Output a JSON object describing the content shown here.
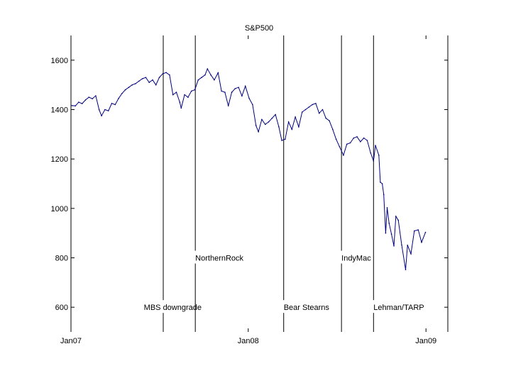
{
  "chart_data": {
    "type": "line",
    "title": "S&P500",
    "xlabel": "",
    "ylabel": "",
    "xlim": [
      "2007-01-01",
      "2009-02-15"
    ],
    "ylim": [
      500,
      1700
    ],
    "x_ticks": [
      {
        "date": "2007-01-01",
        "label": "Jan07"
      },
      {
        "date": "2008-01-01",
        "label": "Jan08"
      },
      {
        "date": "2009-01-01",
        "label": "Jan09"
      }
    ],
    "y_ticks": [
      600,
      800,
      1000,
      1200,
      1400,
      1600
    ],
    "grid": false,
    "series": [
      {
        "color": "#00007f",
        "points": [
          [
            "2007-01-03",
            1416
          ],
          [
            "2007-01-10",
            1415
          ],
          [
            "2007-01-17",
            1430
          ],
          [
            "2007-01-24",
            1424
          ],
          [
            "2007-01-31",
            1439
          ],
          [
            "2007-02-07",
            1450
          ],
          [
            "2007-02-14",
            1444
          ],
          [
            "2007-02-21",
            1456
          ],
          [
            "2007-02-28",
            1399
          ],
          [
            "2007-03-05",
            1375
          ],
          [
            "2007-03-12",
            1400
          ],
          [
            "2007-03-19",
            1395
          ],
          [
            "2007-03-26",
            1425
          ],
          [
            "2007-04-02",
            1420
          ],
          [
            "2007-04-09",
            1445
          ],
          [
            "2007-04-16",
            1465
          ],
          [
            "2007-04-23",
            1480
          ],
          [
            "2007-04-30",
            1490
          ],
          [
            "2007-05-07",
            1500
          ],
          [
            "2007-05-14",
            1505
          ],
          [
            "2007-05-21",
            1515
          ],
          [
            "2007-05-28",
            1525
          ],
          [
            "2007-06-04",
            1530
          ],
          [
            "2007-06-11",
            1510
          ],
          [
            "2007-06-18",
            1520
          ],
          [
            "2007-06-25",
            1500
          ],
          [
            "2007-07-02",
            1530
          ],
          [
            "2007-07-09",
            1545
          ],
          [
            "2007-07-16",
            1550
          ],
          [
            "2007-07-23",
            1540
          ],
          [
            "2007-07-30",
            1460
          ],
          [
            "2007-08-06",
            1470
          ],
          [
            "2007-08-13",
            1430
          ],
          [
            "2007-08-16",
            1406
          ],
          [
            "2007-08-23",
            1460
          ],
          [
            "2007-08-30",
            1450
          ],
          [
            "2007-09-06",
            1475
          ],
          [
            "2007-09-13",
            1480
          ],
          [
            "2007-09-20",
            1520
          ],
          [
            "2007-09-27",
            1530
          ],
          [
            "2007-10-04",
            1540
          ],
          [
            "2007-10-09",
            1565
          ],
          [
            "2007-10-16",
            1540
          ],
          [
            "2007-10-23",
            1520
          ],
          [
            "2007-10-31",
            1549
          ],
          [
            "2007-11-07",
            1475
          ],
          [
            "2007-11-14",
            1470
          ],
          [
            "2007-11-21",
            1415
          ],
          [
            "2007-11-28",
            1470
          ],
          [
            "2007-12-05",
            1485
          ],
          [
            "2007-12-12",
            1490
          ],
          [
            "2007-12-19",
            1455
          ],
          [
            "2007-12-26",
            1495
          ],
          [
            "2008-01-03",
            1445
          ],
          [
            "2008-01-10",
            1420
          ],
          [
            "2008-01-17",
            1335
          ],
          [
            "2008-01-22",
            1310
          ],
          [
            "2008-01-29",
            1360
          ],
          [
            "2008-02-05",
            1340
          ],
          [
            "2008-02-12",
            1350
          ],
          [
            "2008-02-19",
            1365
          ],
          [
            "2008-02-26",
            1380
          ],
          [
            "2008-03-04",
            1330
          ],
          [
            "2008-03-10",
            1275
          ],
          [
            "2008-03-17",
            1280
          ],
          [
            "2008-03-24",
            1350
          ],
          [
            "2008-03-31",
            1320
          ],
          [
            "2008-04-07",
            1370
          ],
          [
            "2008-04-14",
            1330
          ],
          [
            "2008-04-21",
            1390
          ],
          [
            "2008-04-28",
            1400
          ],
          [
            "2008-05-05",
            1410
          ],
          [
            "2008-05-12",
            1420
          ],
          [
            "2008-05-19",
            1425
          ],
          [
            "2008-05-26",
            1385
          ],
          [
            "2008-06-02",
            1400
          ],
          [
            "2008-06-09",
            1365
          ],
          [
            "2008-06-16",
            1355
          ],
          [
            "2008-06-23",
            1320
          ],
          [
            "2008-06-30",
            1280
          ],
          [
            "2008-07-07",
            1250
          ],
          [
            "2008-07-15",
            1215
          ],
          [
            "2008-07-22",
            1260
          ],
          [
            "2008-07-29",
            1265
          ],
          [
            "2008-08-05",
            1285
          ],
          [
            "2008-08-12",
            1290
          ],
          [
            "2008-08-19",
            1270
          ],
          [
            "2008-08-26",
            1285
          ],
          [
            "2008-09-02",
            1275
          ],
          [
            "2008-09-09",
            1225
          ],
          [
            "2008-09-15",
            1192
          ],
          [
            "2008-09-19",
            1255
          ],
          [
            "2008-09-26",
            1215
          ],
          [
            "2008-09-29",
            1106
          ],
          [
            "2008-10-03",
            1100
          ],
          [
            "2008-10-06",
            1056
          ],
          [
            "2008-10-10",
            900
          ],
          [
            "2008-10-13",
            1003
          ],
          [
            "2008-10-17",
            940
          ],
          [
            "2008-10-22",
            896
          ],
          [
            "2008-10-27",
            848
          ],
          [
            "2008-10-31",
            968
          ],
          [
            "2008-11-05",
            952
          ],
          [
            "2008-11-12",
            852
          ],
          [
            "2008-11-20",
            752
          ],
          [
            "2008-11-24",
            851
          ],
          [
            "2008-12-01",
            816
          ],
          [
            "2008-12-08",
            909
          ],
          [
            "2008-12-16",
            913
          ],
          [
            "2008-12-23",
            863
          ],
          [
            "2008-12-31",
            903
          ]
        ]
      }
    ],
    "events": [
      {
        "date": "2007-07-10",
        "label": "MBS downgrade",
        "label_value": 600
      },
      {
        "date": "2007-09-14",
        "label": "NorthernRock",
        "label_value": 800
      },
      {
        "date": "2008-03-14",
        "label": "Bear Stearns",
        "label_value": 600
      },
      {
        "date": "2008-07-11",
        "label": "IndyMac",
        "label_value": 800
      },
      {
        "date": "2008-09-15",
        "label": "Lehman/TARP",
        "label_value": 600
      }
    ]
  }
}
